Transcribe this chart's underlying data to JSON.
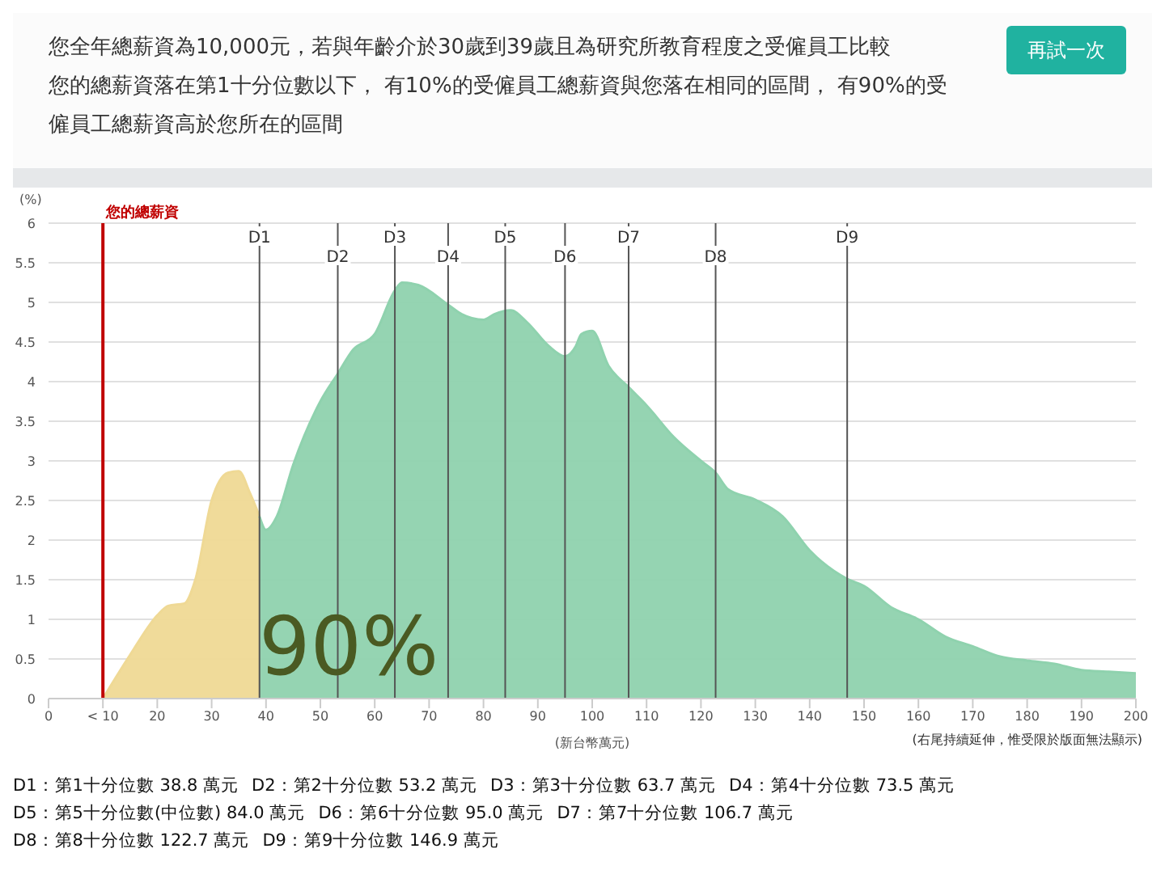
{
  "chart_data": {
    "type": "area",
    "title": "您全年總薪資為10,000元，若與年齡介於30歲到39歲且為研究所教育程度之受僱員工比較",
    "subtitle": "您的總薪資落在第1十分位數以下， 有10%的受僱員工總薪資與您落在相同的區間， 有90%的受僱員工總薪資高於您所在的區間",
    "xlabel": "(新台幣萬元)",
    "ylabel": "(%)",
    "xlim": [
      0,
      200
    ],
    "xticks": [
      0,
      {
        "value": 10,
        "label": "< 10"
      },
      20,
      30,
      40,
      50,
      60,
      70,
      80,
      90,
      100,
      110,
      120,
      130,
      140,
      150,
      160,
      170,
      180,
      190,
      200
    ],
    "ylim": [
      0,
      6
    ],
    "yticks": [
      0,
      0.5,
      1,
      1.5,
      2,
      2.5,
      3,
      3.5,
      4,
      4.5,
      5,
      5.5,
      6
    ],
    "grid": "y",
    "series": [
      {
        "color": "#efd995",
        "x": [
          10,
          15,
          20,
          22,
          25,
          27,
          30,
          33,
          35,
          37,
          38.8
        ],
        "values": [
          0,
          0.55,
          1.05,
          1.17,
          1.2,
          1.5,
          2.5,
          2.85,
          2.87,
          2.6,
          2.3
        ]
      },
      {
        "color": "#8fd2ae",
        "x": [
          38.8,
          40,
          42,
          45,
          50,
          53.2,
          56,
          60,
          63.7,
          65,
          68,
          73.5,
          76,
          80,
          82,
          85,
          88,
          92,
          95,
          97,
          98,
          100,
          103,
          106.7,
          110,
          115,
          120,
          122.7,
          125,
          130,
          135,
          140,
          146.9,
          150,
          155,
          160,
          165,
          170,
          175,
          180,
          185,
          190,
          195,
          200
        ],
        "values": [
          2.3,
          2.13,
          2.3,
          2.95,
          3.75,
          4.1,
          4.4,
          4.6,
          5.15,
          5.25,
          5.22,
          4.97,
          4.85,
          4.78,
          4.85,
          4.9,
          4.75,
          4.45,
          4.32,
          4.45,
          4.6,
          4.64,
          4.2,
          3.93,
          3.7,
          3.3,
          3.0,
          2.85,
          2.64,
          2.51,
          2.3,
          1.87,
          1.51,
          1.42,
          1.15,
          1.0,
          0.78,
          0.66,
          0.53,
          0.48,
          0.44,
          0.36,
          0.34,
          0.32
        ]
      }
    ],
    "ref_lines": [
      {
        "axis": "x",
        "value": 10,
        "label": "您的總薪資",
        "color": "#c00000"
      },
      {
        "axis": "x",
        "value": 38.8,
        "label": "D1",
        "color": "#555555"
      },
      {
        "axis": "x",
        "value": 53.2,
        "label": "D2",
        "color": "#555555"
      },
      {
        "axis": "x",
        "value": 63.7,
        "label": "D3",
        "color": "#555555"
      },
      {
        "axis": "x",
        "value": 73.5,
        "label": "D4",
        "color": "#555555"
      },
      {
        "axis": "x",
        "value": 84.0,
        "label": "D5",
        "color": "#555555"
      },
      {
        "axis": "x",
        "value": 95.0,
        "label": "D6",
        "color": "#555555"
      },
      {
        "axis": "x",
        "value": 106.7,
        "label": "D7",
        "color": "#555555"
      },
      {
        "axis": "x",
        "value": 122.7,
        "label": "D8",
        "color": "#555555"
      },
      {
        "axis": "x",
        "value": 146.9,
        "label": "D9",
        "color": "#555555"
      }
    ],
    "annotations": [
      "再試一次",
      "90%",
      "(右尾持續延伸，惟受限於版面無法顯示)",
      "D1：第1十分位數 38.8 萬元",
      "D2：第2十分位數 53.2 萬元",
      "D3：第3十分位數 63.7 萬元",
      "D4：第4十分位數 73.5 萬元",
      "D5：第5十分位數(中位數) 84.0 萬元",
      "D6：第6十分位數 95.0 萬元",
      "D7：第7十分位數 106.7 萬元",
      "D8：第8十分位數 122.7 萬元",
      "D9：第9十分位數 146.9 萬元"
    ]
  }
}
